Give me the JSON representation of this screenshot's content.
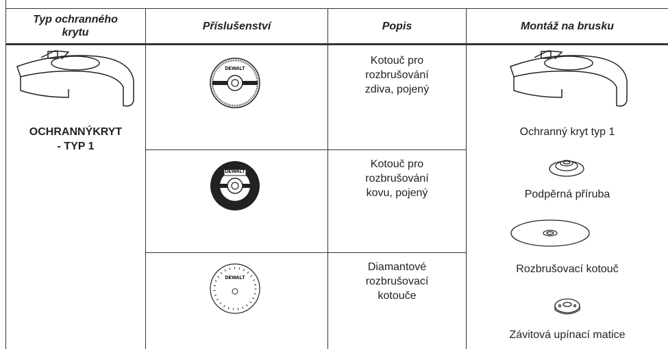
{
  "table": {
    "headers": [
      "Typ ochranného krytu",
      "Příslušenství",
      "Popis",
      "Montáž na brusku"
    ],
    "guard_type": [
      "OCHRANNÝKRYT",
      "- TYP 1"
    ],
    "rows": [
      {
        "description": "Kotouč pro rozbrušování zdiva, pojený"
      },
      {
        "description": "Kotouč pro rozbrušování kovu, pojený"
      },
      {
        "description": "Diamantové rozbrušovací kotouče"
      }
    ],
    "mounting": [
      "Ochranný kryt typ 1",
      "Podpěrná příruba",
      "Rozbrušovací kotouč",
      "Závitová upínací matice"
    ],
    "logo": "DEWALT"
  }
}
